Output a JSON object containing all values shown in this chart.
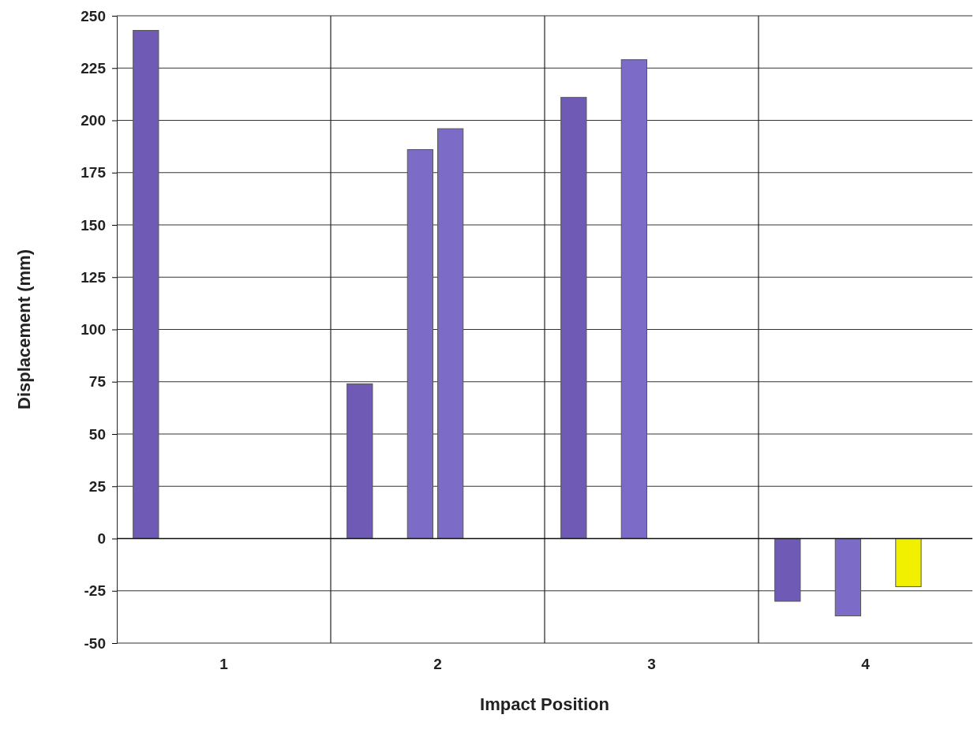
{
  "chart_data": {
    "type": "bar",
    "xlabel": "Impact Position",
    "ylabel": "Displacement (mm)",
    "categories": [
      "1",
      "2",
      "3",
      "4"
    ],
    "series": [
      {
        "color": "#6f5bb5",
        "values": [
          243,
          74,
          211,
          -30
        ]
      },
      {
        "values": [
          null,
          null,
          null,
          null
        ]
      },
      {
        "color": "#7d6bc8",
        "values": [
          null,
          186,
          229,
          -37
        ]
      },
      {
        "color": "#7d6bc8",
        "values": [
          null,
          196,
          null,
          null
        ]
      },
      {
        "color": "#f0f000",
        "values": [
          null,
          null,
          null,
          -23
        ]
      },
      {
        "values": [
          null,
          null,
          null,
          null
        ]
      }
    ],
    "ylim": [
      -50,
      250
    ],
    "yticks": [
      -50,
      -25,
      0,
      25,
      50,
      75,
      100,
      125,
      150,
      175,
      200,
      225,
      250
    ],
    "grid": true
  }
}
